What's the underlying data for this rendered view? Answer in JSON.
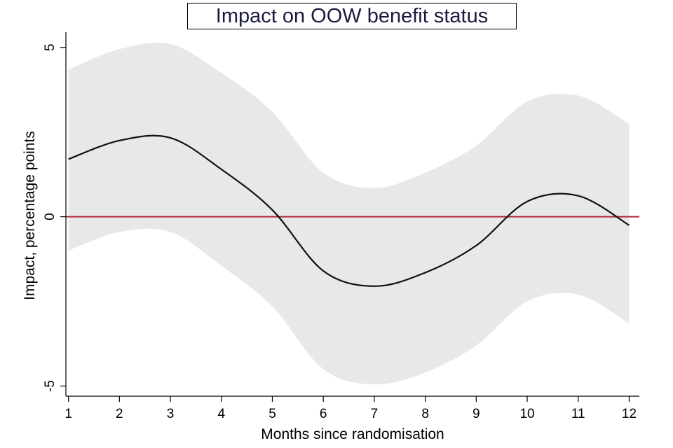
{
  "chart_data": {
    "type": "line",
    "title": "Impact on OOW benefit status",
    "xlabel": "Months since randomisation",
    "ylabel": "Impact, percentage points",
    "x": [
      1,
      2,
      3,
      4,
      5,
      6,
      7,
      8,
      9,
      10,
      11,
      12
    ],
    "xticks": [
      "1",
      "2",
      "3",
      "4",
      "5",
      "6",
      "7",
      "8",
      "9",
      "10",
      "11",
      "12"
    ],
    "yticks": [
      {
        "value": -5,
        "label": "-5"
      },
      {
        "value": 0,
        "label": "0"
      },
      {
        "value": 5,
        "label": "5"
      }
    ],
    "xlim": [
      0.95,
      12.2
    ],
    "ylim": [
      -5.3,
      5.45
    ],
    "reference_line": {
      "value": 0,
      "color": "#b0243c"
    },
    "series": [
      {
        "name": "Impact",
        "color": "#111111",
        "values": [
          1.7,
          2.25,
          2.33,
          1.4,
          0.2,
          -1.6,
          -2.05,
          -1.65,
          -0.85,
          0.45,
          0.62,
          -0.25
        ]
      },
      {
        "name": "Upper confidence bound",
        "color": "#e8e8e8",
        "values": [
          4.35,
          4.95,
          5.1,
          4.25,
          3.1,
          1.3,
          0.85,
          1.3,
          2.1,
          3.4,
          3.58,
          2.75
        ]
      },
      {
        "name": "Lower confidence bound",
        "color": "#e8e8e8",
        "values": [
          -1.0,
          -0.45,
          -0.45,
          -1.45,
          -2.65,
          -4.5,
          -4.95,
          -4.6,
          -3.8,
          -2.5,
          -2.3,
          -3.15
        ]
      }
    ]
  }
}
